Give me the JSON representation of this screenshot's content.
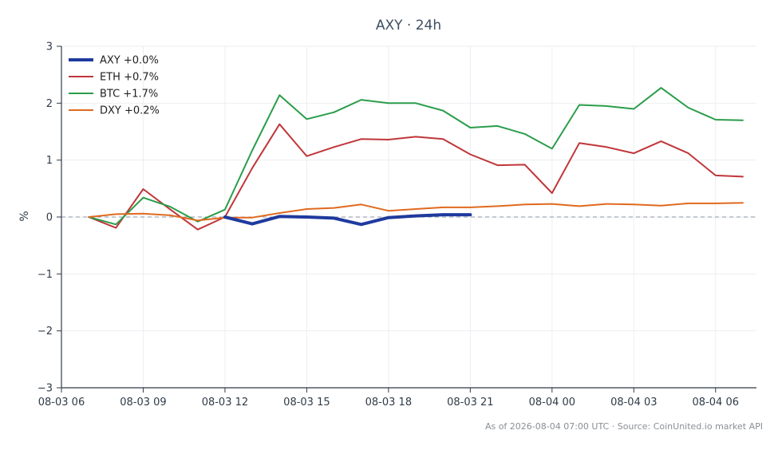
{
  "chart_data": {
    "type": "line",
    "title": "AXY · 24h",
    "ylabel": "%",
    "xlabel": "",
    "ylim": [
      -3,
      3
    ],
    "yticks": [
      3,
      2,
      1,
      0,
      -1,
      -2,
      -3
    ],
    "ytick_labels": [
      "3",
      "2",
      "1",
      "0",
      "−1",
      "−2",
      "−3"
    ],
    "xlim": [
      "2026-08-03 06:00",
      "2026-08-04 07:30"
    ],
    "xticks": [
      {
        "t": "2026-08-03 06:00",
        "label": "08-03 06"
      },
      {
        "t": "2026-08-03 09:00",
        "label": "08-03 09"
      },
      {
        "t": "2026-08-03 12:00",
        "label": "08-03 12"
      },
      {
        "t": "2026-08-03 15:00",
        "label": "08-03 15"
      },
      {
        "t": "2026-08-03 18:00",
        "label": "08-03 18"
      },
      {
        "t": "2026-08-03 21:00",
        "label": "08-03 21"
      },
      {
        "t": "2026-08-04 00:00",
        "label": "08-04 00"
      },
      {
        "t": "2026-08-04 03:00",
        "label": "08-04 03"
      },
      {
        "t": "2026-08-04 06:00",
        "label": "08-04 06"
      }
    ],
    "grid": true,
    "zero_line": "dashed",
    "legend_position": "top-left",
    "series": [
      {
        "name": "AXY +0.0%",
        "color": "#1f3a9e",
        "emphasis": true,
        "points": [
          [
            "2026-08-03 12:00",
            0.0
          ],
          [
            "2026-08-03 13:00",
            -0.12
          ],
          [
            "2026-08-03 14:00",
            0.01
          ],
          [
            "2026-08-03 15:00",
            0.0
          ],
          [
            "2026-08-03 16:00",
            -0.02
          ],
          [
            "2026-08-03 17:00",
            -0.13
          ],
          [
            "2026-08-03 18:00",
            -0.01
          ],
          [
            "2026-08-03 19:00",
            0.02
          ],
          [
            "2026-08-03 20:00",
            0.04
          ],
          [
            "2026-08-03 21:00",
            0.04
          ]
        ]
      },
      {
        "name": "ETH +0.7%",
        "color": "#c0363a",
        "points": [
          [
            "2026-08-03 07:00",
            0.0
          ],
          [
            "2026-08-03 08:00",
            -0.19
          ],
          [
            "2026-08-03 09:00",
            0.49
          ],
          [
            "2026-08-03 10:00",
            0.13
          ],
          [
            "2026-08-03 11:00",
            -0.22
          ],
          [
            "2026-08-03 12:00",
            0.0
          ],
          [
            "2026-08-03 13:00",
            0.86
          ],
          [
            "2026-08-03 14:00",
            1.63
          ],
          [
            "2026-08-03 15:00",
            1.07
          ],
          [
            "2026-08-03 16:00",
            1.23
          ],
          [
            "2026-08-03 17:00",
            1.37
          ],
          [
            "2026-08-03 18:00",
            1.36
          ],
          [
            "2026-08-03 19:00",
            1.41
          ],
          [
            "2026-08-03 20:00",
            1.37
          ],
          [
            "2026-08-03 21:00",
            1.1
          ],
          [
            "2026-08-03 22:00",
            0.91
          ],
          [
            "2026-08-03 23:00",
            0.92
          ],
          [
            "2026-08-04 00:00",
            0.42
          ],
          [
            "2026-08-04 01:00",
            1.3
          ],
          [
            "2026-08-04 02:00",
            1.23
          ],
          [
            "2026-08-04 03:00",
            1.12
          ],
          [
            "2026-08-04 04:00",
            1.33
          ],
          [
            "2026-08-04 05:00",
            1.12
          ],
          [
            "2026-08-04 06:00",
            0.73
          ],
          [
            "2026-08-04 07:00",
            0.71
          ]
        ]
      },
      {
        "name": "BTC +1.7%",
        "color": "#2a9d4a",
        "points": [
          [
            "2026-08-03 07:00",
            0.0
          ],
          [
            "2026-08-03 08:00",
            -0.13
          ],
          [
            "2026-08-03 09:00",
            0.34
          ],
          [
            "2026-08-03 10:00",
            0.18
          ],
          [
            "2026-08-03 11:00",
            -0.08
          ],
          [
            "2026-08-03 12:00",
            0.13
          ],
          [
            "2026-08-03 13:00",
            1.17
          ],
          [
            "2026-08-03 14:00",
            2.14
          ],
          [
            "2026-08-03 15:00",
            1.72
          ],
          [
            "2026-08-03 16:00",
            1.84
          ],
          [
            "2026-08-03 17:00",
            2.06
          ],
          [
            "2026-08-03 18:00",
            2.0
          ],
          [
            "2026-08-03 19:00",
            2.0
          ],
          [
            "2026-08-03 20:00",
            1.87
          ],
          [
            "2026-08-03 21:00",
            1.57
          ],
          [
            "2026-08-03 22:00",
            1.6
          ],
          [
            "2026-08-03 23:00",
            1.46
          ],
          [
            "2026-08-04 00:00",
            1.2
          ],
          [
            "2026-08-04 01:00",
            1.97
          ],
          [
            "2026-08-04 02:00",
            1.95
          ],
          [
            "2026-08-04 03:00",
            1.9
          ],
          [
            "2026-08-04 04:00",
            2.27
          ],
          [
            "2026-08-04 05:00",
            1.92
          ],
          [
            "2026-08-04 06:00",
            1.71
          ],
          [
            "2026-08-04 07:00",
            1.7
          ]
        ]
      },
      {
        "name": "DXY +0.2%",
        "color": "#e0691f",
        "points": [
          [
            "2026-08-03 07:00",
            0.0
          ],
          [
            "2026-08-03 08:00",
            0.05
          ],
          [
            "2026-08-03 09:00",
            0.06
          ],
          [
            "2026-08-03 10:00",
            0.03
          ],
          [
            "2026-08-03 11:00",
            -0.06
          ],
          [
            "2026-08-03 12:00",
            -0.01
          ],
          [
            "2026-08-03 13:00",
            -0.01
          ],
          [
            "2026-08-03 14:00",
            0.07
          ],
          [
            "2026-08-03 15:00",
            0.14
          ],
          [
            "2026-08-03 16:00",
            0.16
          ],
          [
            "2026-08-03 17:00",
            0.22
          ],
          [
            "2026-08-03 18:00",
            0.11
          ],
          [
            "2026-08-03 19:00",
            0.14
          ],
          [
            "2026-08-03 20:00",
            0.17
          ],
          [
            "2026-08-03 21:00",
            0.17
          ],
          [
            "2026-08-03 22:00",
            0.19
          ],
          [
            "2026-08-03 23:00",
            0.22
          ],
          [
            "2026-08-04 00:00",
            0.23
          ],
          [
            "2026-08-04 01:00",
            0.19
          ],
          [
            "2026-08-04 02:00",
            0.23
          ],
          [
            "2026-08-04 03:00",
            0.22
          ],
          [
            "2026-08-04 04:00",
            0.2
          ],
          [
            "2026-08-04 05:00",
            0.24
          ],
          [
            "2026-08-04 06:00",
            0.24
          ],
          [
            "2026-08-04 07:00",
            0.25
          ]
        ]
      }
    ],
    "footer": "As of 2026-08-04 07:00 UTC · Source: CoinUnited.io market API"
  }
}
